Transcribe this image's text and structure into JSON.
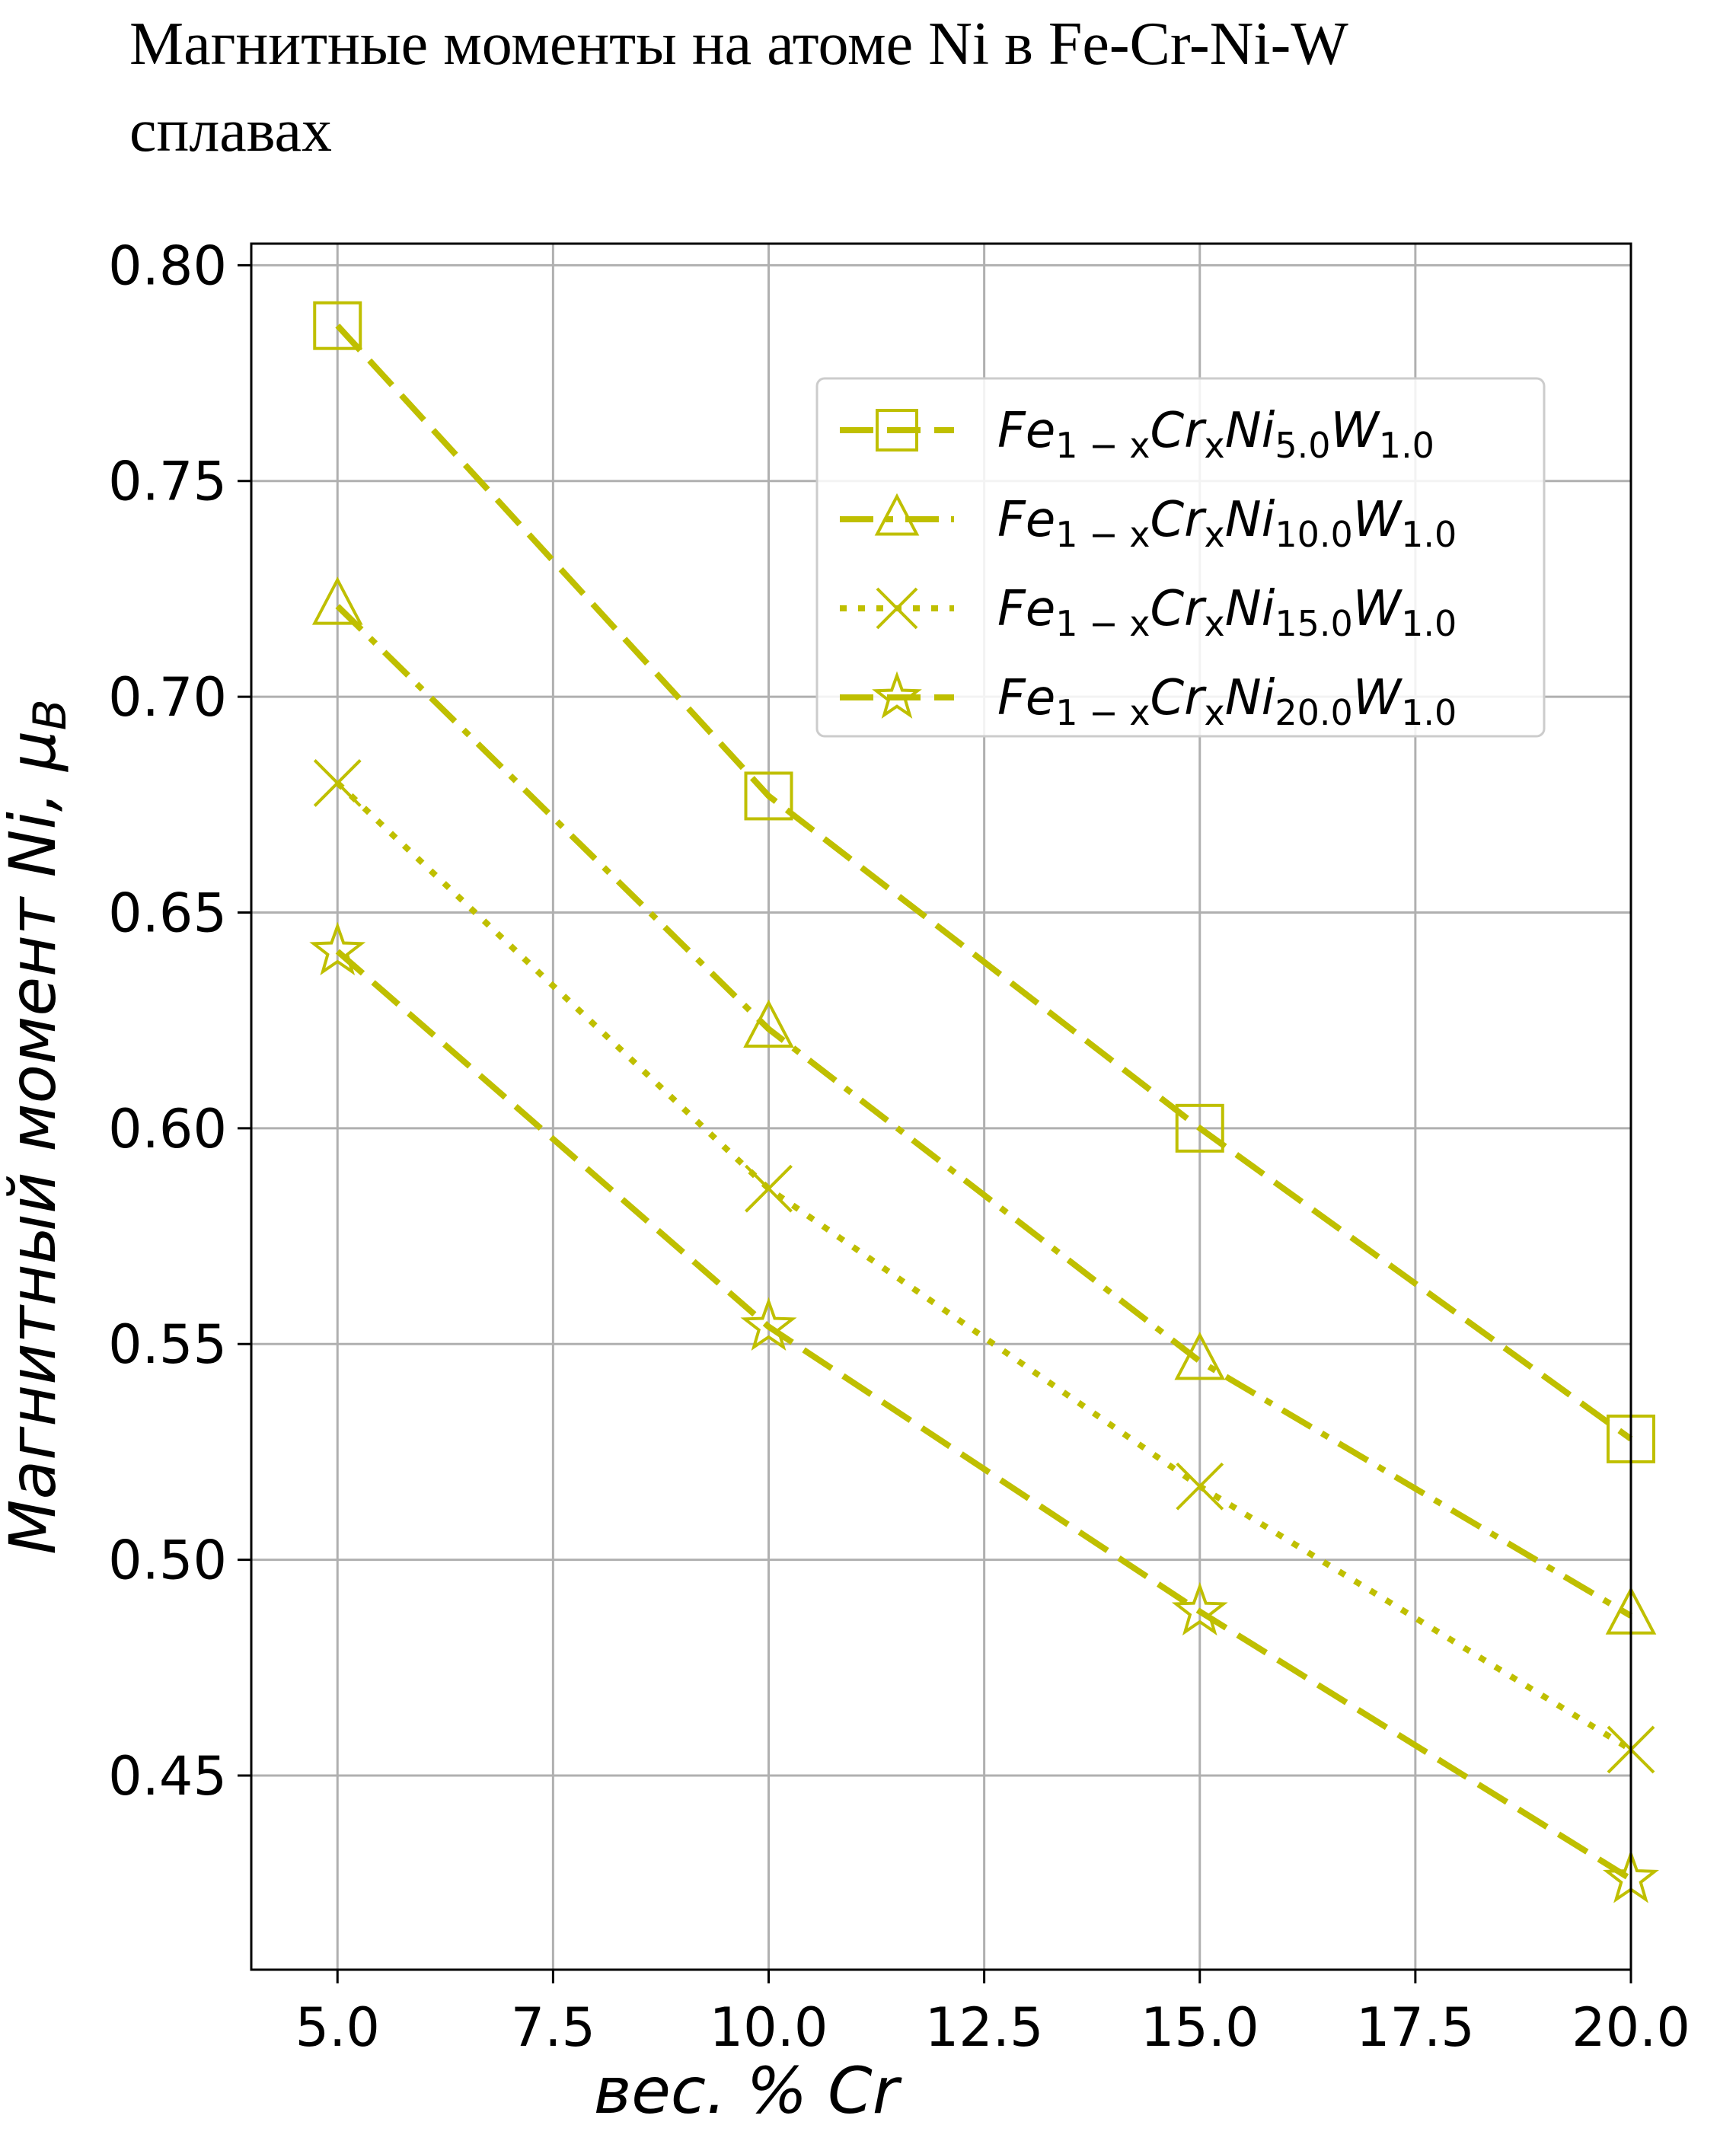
{
  "colors": {
    "series": "#bfbf00"
  },
  "chart_data": {
    "type": "line",
    "title_lines": [
      "Магнитные моменты на атоме Ni в Fe-Cr-Ni-W",
      "сплавах"
    ],
    "xlabel": "вес.  % Cr",
    "ylabel": "Магнитный момент Ni, μ",
    "ylabel_sub": "B",
    "xlim": [
      4.0,
      20.0
    ],
    "ylim": [
      0.405,
      0.805
    ],
    "xticks": [
      5.0,
      7.5,
      10.0,
      12.5,
      15.0,
      17.5,
      20.0
    ],
    "xtick_labels": [
      "5.0",
      "7.5",
      "10.0",
      "12.5",
      "15.0",
      "17.5",
      "20.0"
    ],
    "yticks": [
      0.45,
      0.5,
      0.55,
      0.6,
      0.65,
      0.7,
      0.75,
      0.8
    ],
    "ytick_labels": [
      "0.45",
      "0.50",
      "0.55",
      "0.60",
      "0.65",
      "0.70",
      "0.75",
      "0.80"
    ],
    "grid": true,
    "legend_position": "upper-right",
    "x": [
      5.0,
      10.0,
      15.0,
      20.0
    ],
    "series": [
      {
        "label_parts": [
          "Fe",
          "1 − x",
          "Cr",
          "x",
          "Ni",
          "5.0",
          "W",
          "1.0"
        ],
        "values": [
          0.786,
          0.677,
          0.6,
          0.528
        ],
        "marker": "square",
        "linestyle": "dashed"
      },
      {
        "label_parts": [
          "Fe",
          "1 − x",
          "Cr",
          "x",
          "Ni",
          "10.0",
          "W",
          "1.0"
        ],
        "values": [
          0.721,
          0.623,
          0.546,
          0.487
        ],
        "marker": "triangle",
        "linestyle": "dashdot"
      },
      {
        "label_parts": [
          "Fe",
          "1 − x",
          "Cr",
          "x",
          "Ni",
          "15.0",
          "W",
          "1.0"
        ],
        "values": [
          0.68,
          0.586,
          0.517,
          0.456
        ],
        "marker": "x",
        "linestyle": "dotted"
      },
      {
        "label_parts": [
          "Fe",
          "1 − x",
          "Cr",
          "x",
          "Ni",
          "20.0",
          "W",
          "1.0"
        ],
        "values": [
          0.641,
          0.554,
          0.488,
          0.426
        ],
        "marker": "star",
        "linestyle": "dashed"
      }
    ]
  }
}
